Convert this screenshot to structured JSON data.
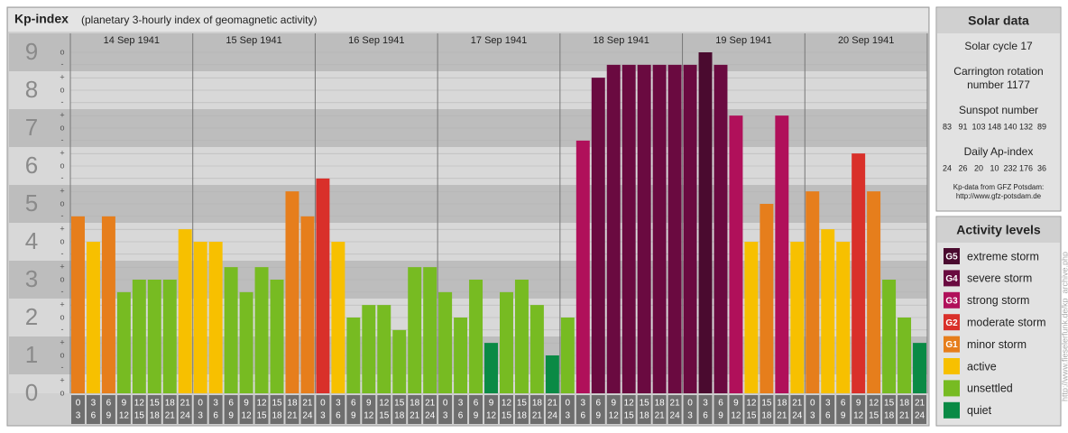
{
  "chart_data": {
    "type": "bar",
    "title": "Kp-index",
    "subtitle": "(planetary 3-hourly index of geomagnetic activity)",
    "days": [
      "14 Sep 1941",
      "15 Sep 1941",
      "16 Sep 1941",
      "17 Sep 1941",
      "18 Sep 1941",
      "19 Sep 1941",
      "20 Sep 1941"
    ],
    "slots": [
      [
        0,
        3
      ],
      [
        3,
        6
      ],
      [
        6,
        9
      ],
      [
        9,
        12
      ],
      [
        12,
        15
      ],
      [
        15,
        18
      ],
      [
        18,
        21
      ],
      [
        21,
        24
      ]
    ],
    "values": [
      4.67,
      4,
      4.67,
      2.67,
      3,
      3,
      3,
      4.33,
      4,
      4,
      3.33,
      2.67,
      3.33,
      3,
      5.33,
      4.67,
      5.67,
      4,
      2,
      2.33,
      2.33,
      1.67,
      3.33,
      3.33,
      2.67,
      2,
      3,
      1.33,
      2.67,
      3,
      2.33,
      1,
      2,
      6.67,
      8.33,
      8.67,
      8.67,
      8.67,
      8.67,
      8.67,
      8.67,
      9,
      8.67,
      7.33,
      4,
      5,
      7.33,
      4,
      5.33,
      4.33,
      4,
      6.33,
      5.33,
      3,
      2,
      1.33
    ],
    "colors": [
      "#e67e1c",
      "#f7c000",
      "#e67e1c",
      "#77bb22",
      "#77bb22",
      "#77bb22",
      "#77bb22",
      "#f7c000",
      "#f7c000",
      "#f7c000",
      "#77bb22",
      "#77bb22",
      "#77bb22",
      "#77bb22",
      "#e67e1c",
      "#e67e1c",
      "#d9302a",
      "#f7c000",
      "#77bb22",
      "#77bb22",
      "#77bb22",
      "#77bb22",
      "#77bb22",
      "#77bb22",
      "#77bb22",
      "#77bb22",
      "#77bb22",
      "#0a8a45",
      "#77bb22",
      "#77bb22",
      "#77bb22",
      "#0a8a45",
      "#77bb22",
      "#b0105a",
      "#6a0a40",
      "#6a0a40",
      "#6a0a40",
      "#6a0a40",
      "#6a0a40",
      "#6a0a40",
      "#6a0a40",
      "#4a0a2f",
      "#6a0a40",
      "#b0105a",
      "#f7c000",
      "#e67e1c",
      "#b0105a",
      "#f7c000",
      "#e67e1c",
      "#f7c000",
      "#f7c000",
      "#d9302a",
      "#e67e1c",
      "#77bb22",
      "#77bb22",
      "#0a8a45"
    ],
    "ylim": [
      0,
      9
    ],
    "yticks": [
      0,
      1,
      2,
      3,
      4,
      5,
      6,
      7,
      8,
      9
    ],
    "yminorticks": [
      {
        "value": 0,
        "label": "o"
      },
      {
        "value": 0.33,
        "label": "+"
      },
      {
        "value": 0.67,
        "label": "-"
      },
      {
        "value": 1,
        "label": "o"
      },
      {
        "value": 1.33,
        "label": "+"
      },
      {
        "value": 1.67,
        "label": "-"
      },
      {
        "value": 2,
        "label": "o"
      },
      {
        "value": 2.33,
        "label": "+"
      },
      {
        "value": 2.67,
        "label": "-"
      },
      {
        "value": 3,
        "label": "o"
      },
      {
        "value": 3.33,
        "label": "+"
      },
      {
        "value": 3.67,
        "label": "-"
      },
      {
        "value": 4,
        "label": "o"
      },
      {
        "value": 4.33,
        "label": "+"
      },
      {
        "value": 4.67,
        "label": "-"
      },
      {
        "value": 5,
        "label": "o"
      },
      {
        "value": 5.33,
        "label": "+"
      },
      {
        "value": 5.67,
        "label": "-"
      },
      {
        "value": 6,
        "label": "o"
      },
      {
        "value": 6.33,
        "label": "+"
      },
      {
        "value": 6.67,
        "label": "-"
      },
      {
        "value": 7,
        "label": "o"
      },
      {
        "value": 7.33,
        "label": "+"
      },
      {
        "value": 7.67,
        "label": "-"
      },
      {
        "value": 8,
        "label": "o"
      },
      {
        "value": 8.33,
        "label": "+"
      },
      {
        "value": 8.67,
        "label": "-"
      },
      {
        "value": 9,
        "label": "o"
      }
    ],
    "grid": true,
    "solar_data": {
      "title": "Solar data",
      "cycle": "Solar cycle 17",
      "carrington": [
        "Carrington rotation",
        "number 1177"
      ],
      "sunspot_label": "Sunspot number",
      "sunspot": [
        83,
        91,
        103,
        148,
        140,
        132,
        89
      ],
      "ap_label": "Daily Ap-index",
      "ap": [
        24,
        26,
        20,
        10,
        232,
        176,
        36
      ],
      "source": [
        "Kp-data from GFZ Potsdam:",
        "http://www.gfz-potsdam.de"
      ]
    },
    "legend": {
      "title": "Activity levels",
      "items": [
        {
          "code": "G5",
          "name": "extreme storm",
          "color": "#4a0a2f"
        },
        {
          "code": "G4",
          "name": "severe storm",
          "color": "#6a0a40"
        },
        {
          "code": "G3",
          "name": "strong storm",
          "color": "#b0105a"
        },
        {
          "code": "G2",
          "name": "moderate storm",
          "color": "#d9302a"
        },
        {
          "code": "G1",
          "name": "minor storm",
          "color": "#e67e1c"
        },
        {
          "name": "active",
          "color": "#f7c000"
        },
        {
          "name": "unsettled",
          "color": "#77bb22"
        },
        {
          "name": "quiet",
          "color": "#0a8a45"
        }
      ]
    },
    "credit": "http://www.fieselerfunk.de/kp_archive.php"
  }
}
